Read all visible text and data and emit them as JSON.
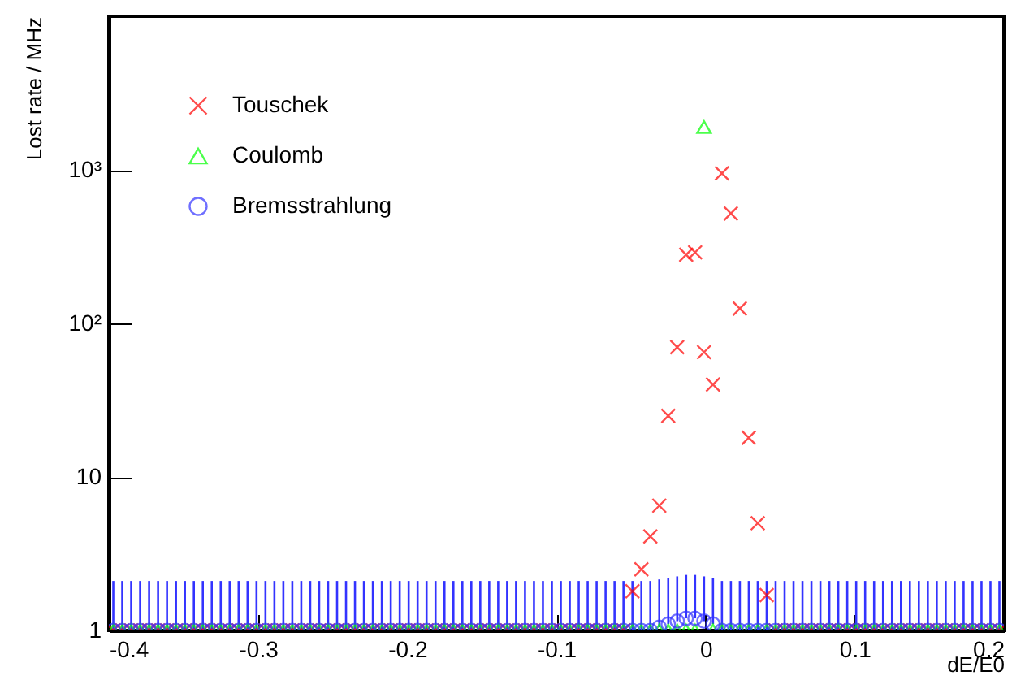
{
  "chart_data": {
    "type": "scatter",
    "xlabel": "dE/E0",
    "ylabel": "Lost rate / MHz",
    "log": "y",
    "xlim": [
      -0.4,
      0.2
    ],
    "ylim": [
      1,
      10000
    ],
    "xticks": [
      -0.4,
      -0.3,
      -0.2,
      -0.1,
      0,
      0.1,
      0.2
    ],
    "yticks": [
      1,
      10,
      {
        "value": 100,
        "label": "10²"
      },
      {
        "value": 1000,
        "label": "10³"
      }
    ],
    "legend": "top left",
    "grid": false,
    "x": [
      -0.397,
      -0.391,
      -0.385,
      -0.379,
      -0.373,
      -0.367,
      -0.361,
      -0.355,
      -0.349,
      -0.343,
      -0.337,
      -0.331,
      -0.325,
      -0.319,
      -0.313,
      -0.307,
      -0.301,
      -0.295,
      -0.289,
      -0.283,
      -0.277,
      -0.271,
      -0.265,
      -0.259,
      -0.253,
      -0.247,
      -0.241,
      -0.235,
      -0.229,
      -0.223,
      -0.217,
      -0.211,
      -0.205,
      -0.199,
      -0.193,
      -0.187,
      -0.181,
      -0.175,
      -0.169,
      -0.163,
      -0.157,
      -0.151,
      -0.145,
      -0.139,
      -0.133,
      -0.127,
      -0.121,
      -0.115,
      -0.109,
      -0.103,
      -0.097,
      -0.091,
      -0.085,
      -0.079,
      -0.073,
      -0.067,
      -0.061,
      -0.055,
      -0.049,
      -0.043,
      -0.037,
      -0.031,
      -0.025,
      -0.019,
      -0.013,
      -0.007,
      -0.001,
      0.005,
      0.011,
      0.017,
      0.023,
      0.029,
      0.035,
      0.041,
      0.047,
      0.053,
      0.059,
      0.065,
      0.071,
      0.077,
      0.083,
      0.089,
      0.095,
      0.101,
      0.107,
      0.113,
      0.119,
      0.125,
      0.131,
      0.137,
      0.143,
      0.149,
      0.155,
      0.161,
      0.167,
      0.173,
      0.179,
      0.185,
      0.191,
      0.197
    ],
    "series": [
      {
        "name": "Touschek",
        "color": "#ff0000",
        "marker": "cross",
        "values": [
          1,
          1,
          1,
          1,
          1,
          1,
          1,
          1,
          1,
          1,
          1,
          1,
          1,
          1,
          1,
          1,
          1,
          1,
          1,
          1,
          1,
          1,
          1,
          1,
          1,
          1,
          1,
          1,
          1,
          1,
          1,
          1,
          1,
          1,
          1,
          1,
          1,
          1,
          1,
          1,
          1,
          1,
          1,
          1,
          1,
          1,
          1,
          1,
          1,
          1,
          1,
          1,
          1,
          1,
          1,
          1,
          1,
          1,
          1.8,
          2.5,
          4.1,
          6.5,
          25,
          70,
          280,
          290,
          65,
          40,
          950,
          520,
          125,
          18,
          5,
          1.7,
          1,
          1,
          1,
          1,
          1,
          1,
          1,
          1,
          1,
          1,
          1,
          1,
          1,
          1,
          1,
          1,
          1,
          1,
          1,
          1,
          1,
          1,
          1,
          1,
          1,
          1
        ]
      },
      {
        "name": "Coulomb",
        "color": "#00ff00",
        "marker": "triangle",
        "values": [
          1,
          1,
          1,
          1,
          1,
          1,
          1,
          1,
          1,
          1,
          1,
          1,
          1,
          1,
          1,
          1,
          1,
          1,
          1,
          1,
          1,
          1,
          1,
          1,
          1,
          1,
          1,
          1,
          1,
          1,
          1,
          1,
          1,
          1,
          1,
          1,
          1,
          1,
          1,
          1,
          1,
          1,
          1,
          1,
          1,
          1,
          1,
          1,
          1,
          1,
          1,
          1,
          1,
          1,
          1,
          1,
          1,
          1,
          1,
          1,
          1,
          1,
          1,
          1,
          1,
          1,
          1900,
          1,
          1,
          1,
          1,
          1,
          1,
          1,
          1,
          1,
          1,
          1,
          1,
          1,
          1,
          1,
          1,
          1,
          1,
          1,
          1,
          1,
          1,
          1,
          1,
          1,
          1,
          1,
          1,
          1,
          1,
          1,
          1,
          1
        ]
      },
      {
        "name": "Bremsstrahlung",
        "color": "#3333ff",
        "marker": "circle",
        "values": [
          1,
          1,
          1,
          1,
          1,
          1,
          1,
          1,
          1,
          1,
          1,
          1,
          1,
          1,
          1,
          1,
          1,
          1,
          1,
          1,
          1,
          1,
          1,
          1,
          1,
          1,
          1,
          1,
          1,
          1,
          1,
          1,
          1,
          1,
          1,
          1,
          1,
          1,
          1,
          1,
          1,
          1,
          1,
          1,
          1,
          1,
          1,
          1,
          1,
          1,
          1,
          1,
          1,
          1,
          1,
          1,
          1,
          1,
          1,
          1,
          1,
          1.05,
          1.1,
          1.15,
          1.2,
          1.2,
          1.15,
          1.1,
          1,
          1,
          1,
          1,
          1,
          1,
          1,
          1,
          1,
          1,
          1,
          1,
          1,
          1,
          1,
          1,
          1,
          1,
          1,
          1,
          1,
          1,
          1,
          1,
          1,
          1,
          1,
          1,
          1,
          1,
          1,
          1
        ],
        "errors": [
          1.1,
          1.1,
          1.1,
          1.1,
          1.1,
          1.1,
          1.1,
          1.1,
          1.1,
          1.1,
          1.1,
          1.1,
          1.1,
          1.1,
          1.1,
          1.1,
          1.1,
          1.1,
          1.1,
          1.1,
          1.1,
          1.1,
          1.1,
          1.1,
          1.1,
          1.1,
          1.1,
          1.1,
          1.1,
          1.1,
          1.1,
          1.1,
          1.1,
          1.1,
          1.1,
          1.1,
          1.1,
          1.1,
          1.1,
          1.1,
          1.1,
          1.1,
          1.1,
          1.1,
          1.1,
          1.1,
          1.1,
          1.1,
          1.1,
          1.1,
          1.1,
          1.1,
          1.1,
          1.1,
          1.1,
          1.1,
          1.1,
          1.1,
          1.1,
          1.1,
          1.1,
          1.1,
          1.1,
          1.1,
          1.1,
          1.1,
          1.1,
          1.1,
          1.1,
          1.1,
          1.1,
          1.1,
          1.1,
          1.1,
          1.1,
          1.1,
          1.1,
          1.1,
          1.1,
          1.1,
          1.1,
          1.1,
          1.1,
          1.1,
          1.1,
          1.1,
          1.1,
          1.1,
          1.1,
          1.1,
          1.1,
          1.1,
          1.1,
          1.1,
          1.1,
          1.1,
          1.1,
          1.1,
          1.1,
          1.1
        ]
      }
    ]
  }
}
